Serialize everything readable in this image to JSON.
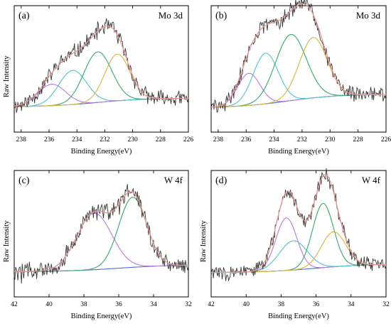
{
  "chart_data": [
    {
      "type": "line",
      "panel_label": "(a)",
      "annotation": "Mo 3d",
      "xlabel": "Binding Energy(eV)",
      "ylabel": "Raw Intensity",
      "xlim": [
        238.5,
        226
      ],
      "x_reversed": true,
      "x_ticks": [
        238,
        236,
        234,
        232,
        230,
        228,
        226
      ],
      "y_ticks_shown": false,
      "noise_seed": 11,
      "noise_amp": 0.075,
      "raw": {
        "color": "#3a3a3a"
      },
      "envelope": {
        "color": "#e89a9a"
      },
      "background": {
        "color": "#4a6fd0",
        "start": 0.1,
        "end": 0.01,
        "center": 232.5,
        "width": 1.8
      },
      "components": [
        {
          "center": 235.8,
          "amp": 0.22,
          "width": 1.0,
          "color": "#b57bd9"
        },
        {
          "center": 234.3,
          "amp": 0.35,
          "width": 1.0,
          "color": "#4fc3d0"
        },
        {
          "center": 232.5,
          "amp": 0.52,
          "width": 1.0,
          "color": "#36a86a"
        },
        {
          "center": 231.1,
          "amp": 0.48,
          "width": 0.9,
          "color": "#d9b43a"
        }
      ]
    },
    {
      "type": "line",
      "panel_label": "(b)",
      "annotation": "Mo 3d",
      "xlabel": "Binding Energy(eV)",
      "ylabel": "",
      "xlim": [
        238.5,
        226
      ],
      "x_reversed": true,
      "x_ticks": [
        238,
        236,
        234,
        232,
        230,
        228,
        226
      ],
      "y_ticks_shown": false,
      "noise_seed": 29,
      "noise_amp": 0.07,
      "raw": {
        "color": "#3a3a3a"
      },
      "envelope": {
        "color": "#e89a9a"
      },
      "background": {
        "color": "#4a6fd0",
        "start": 0.14,
        "end": 0.0,
        "center": 233.0,
        "width": 1.8
      },
      "components": [
        {
          "center": 235.8,
          "amp": 0.33,
          "width": 0.8,
          "color": "#b57bd9"
        },
        {
          "center": 234.6,
          "amp": 0.52,
          "width": 0.9,
          "color": "#4fc3d0"
        },
        {
          "center": 232.8,
          "amp": 0.68,
          "width": 1.1,
          "color": "#36a86a"
        },
        {
          "center": 231.2,
          "amp": 0.62,
          "width": 1.0,
          "color": "#d9b43a"
        }
      ]
    },
    {
      "type": "line",
      "panel_label": "(c)",
      "annotation": "W 4f",
      "xlabel": "Binding Energy(eV)",
      "ylabel": "Raw Intensity",
      "xlim": [
        42,
        32
      ],
      "x_reversed": true,
      "x_ticks": [
        42,
        40,
        38,
        36,
        34,
        32
      ],
      "y_ticks_shown": false,
      "noise_seed": 47,
      "noise_amp": 0.09,
      "raw": {
        "color": "#3a3a3a"
      },
      "envelope": {
        "color": "#e89a9a"
      },
      "background": {
        "color": "#4a6fd0",
        "start": 0.08,
        "end": 0.01,
        "center": 36.0,
        "width": 1.5
      },
      "components": [
        {
          "center": 37.4,
          "amp": 0.58,
          "width": 1.0,
          "color": "#b57bd9"
        },
        {
          "center": 35.2,
          "amp": 0.72,
          "width": 0.8,
          "color": "#36a86a"
        }
      ]
    },
    {
      "type": "line",
      "panel_label": "(d)",
      "annotation": "W 4f",
      "xlabel": "Binding Energy(eV)",
      "ylabel": "Raw Intensity",
      "xlim": [
        42,
        32
      ],
      "x_reversed": true,
      "x_ticks": [
        42,
        40,
        38,
        36,
        34,
        32
      ],
      "y_ticks_shown": false,
      "noise_seed": 83,
      "noise_amp": 0.07,
      "raw": {
        "color": "#3a3a3a"
      },
      "envelope": {
        "color": "#e89a9a"
      },
      "background": {
        "color": "#4a6fd0",
        "start": 0.09,
        "end": 0.0,
        "center": 36.0,
        "width": 1.5
      },
      "components": [
        {
          "center": 37.7,
          "amp": 0.54,
          "width": 0.6,
          "color": "#b57bd9"
        },
        {
          "center": 37.3,
          "amp": 0.3,
          "width": 0.8,
          "color": "#4fc3d0"
        },
        {
          "center": 35.6,
          "amp": 0.66,
          "width": 0.6,
          "color": "#36a86a"
        },
        {
          "center": 35.0,
          "amp": 0.36,
          "width": 0.7,
          "color": "#d9b43a"
        }
      ]
    }
  ]
}
